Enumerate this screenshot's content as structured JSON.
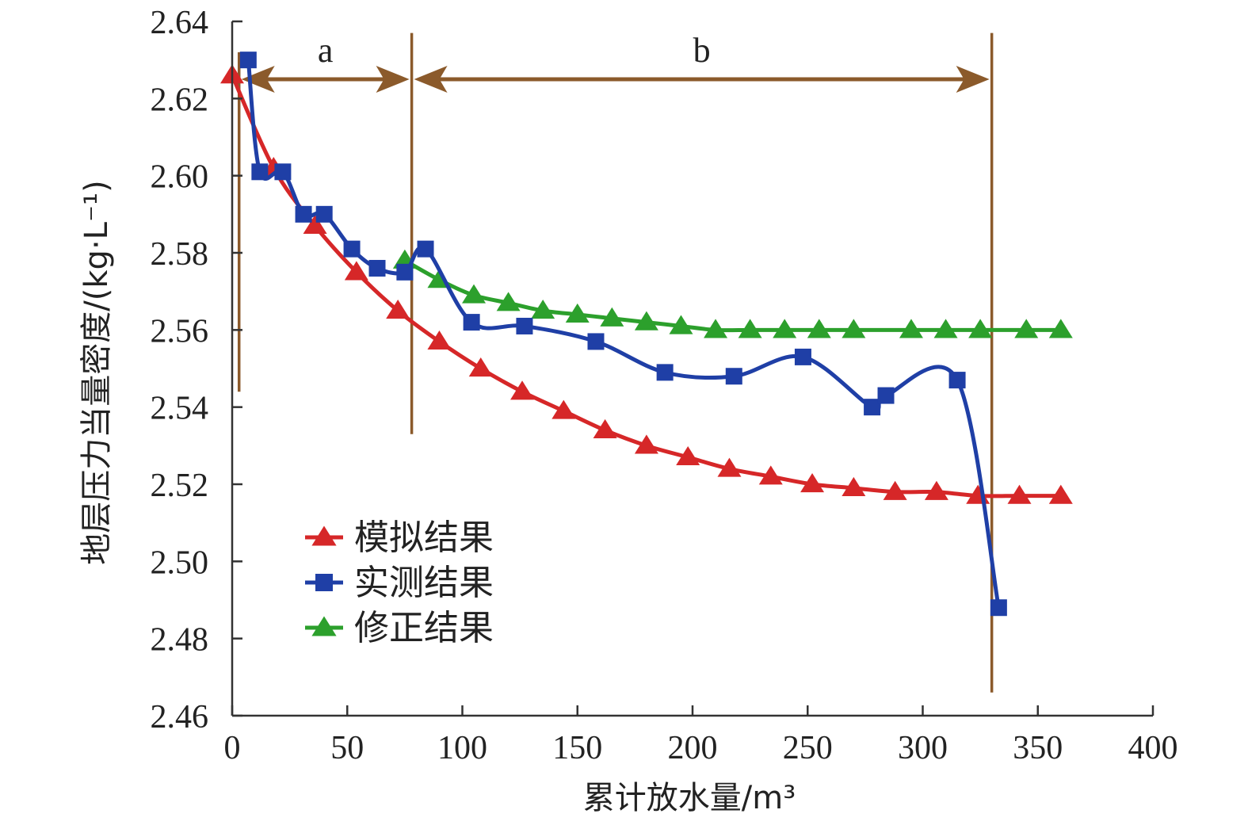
{
  "chart_data": {
    "type": "line",
    "title": "",
    "xlabel": "累计放水量/m³",
    "ylabel": "地层压力当量密度/(kg·L⁻¹)",
    "xlim": [
      0,
      400
    ],
    "ylim": [
      2.46,
      2.64
    ],
    "xticks": [
      "0",
      "50",
      "100",
      "150",
      "200",
      "250",
      "300",
      "350",
      "400"
    ],
    "yticks": [
      "2.46",
      "2.48",
      "2.50",
      "2.52",
      "2.54",
      "2.56",
      "2.58",
      "2.60",
      "2.62",
      "2.64"
    ],
    "xtick_values": [
      0,
      50,
      100,
      150,
      200,
      250,
      300,
      350,
      400
    ],
    "ytick_values": [
      2.46,
      2.48,
      2.5,
      2.52,
      2.54,
      2.56,
      2.58,
      2.6,
      2.62,
      2.64
    ],
    "legend_position": "lower-left",
    "grid": false,
    "series": [
      {
        "name": "模拟结果",
        "color": "#d62728",
        "marker": "triangle",
        "x": [
          0,
          18,
          36,
          54,
          72,
          90,
          108,
          126,
          144,
          162,
          180,
          198,
          216,
          234,
          252,
          270,
          288,
          306,
          324,
          342,
          360
        ],
        "y": [
          2.626,
          2.602,
          2.587,
          2.575,
          2.565,
          2.557,
          2.55,
          2.544,
          2.539,
          2.534,
          2.53,
          2.527,
          2.524,
          2.522,
          2.52,
          2.519,
          2.518,
          2.518,
          2.517,
          2.517,
          2.517
        ]
      },
      {
        "name": "实测结果",
        "color": "#1f3fa6",
        "marker": "square",
        "x": [
          7,
          12,
          22,
          31,
          40,
          52,
          63,
          75,
          84,
          104,
          127,
          158,
          188,
          218,
          248,
          278,
          284,
          315,
          333
        ],
        "y": [
          2.63,
          2.601,
          2.601,
          2.59,
          2.59,
          2.581,
          2.576,
          2.575,
          2.581,
          2.562,
          2.561,
          2.557,
          2.549,
          2.548,
          2.553,
          2.54,
          2.543,
          2.547,
          2.488
        ]
      },
      {
        "name": "修正结果",
        "color": "#2ca02c",
        "marker": "triangle",
        "x": [
          75,
          90,
          105,
          120,
          135,
          150,
          165,
          180,
          195,
          210,
          225,
          240,
          255,
          270,
          295,
          310,
          325,
          345,
          360
        ],
        "y": [
          2.578,
          2.573,
          2.569,
          2.567,
          2.565,
          2.564,
          2.563,
          2.562,
          2.561,
          2.56,
          2.56,
          2.56,
          2.56,
          2.56,
          2.56,
          2.56,
          2.56,
          2.56,
          2.56
        ]
      }
    ],
    "regions": [
      {
        "label": "a",
        "x_start": 3,
        "x_end": 78
      },
      {
        "label": "b",
        "x_start": 78,
        "x_end": 330
      }
    ],
    "region_lines_x": [
      3,
      78,
      330
    ],
    "annotation_color": "#8b5a2b"
  }
}
